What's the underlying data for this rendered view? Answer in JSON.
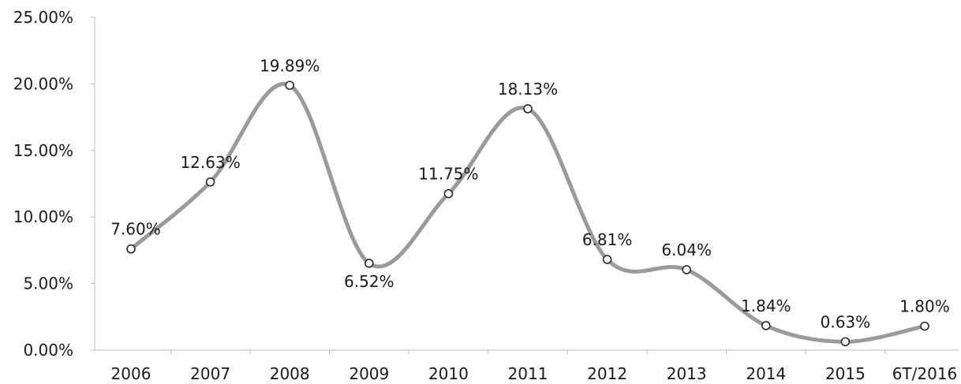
{
  "chart_data": {
    "type": "line",
    "categories": [
      "2006",
      "2007",
      "2008",
      "2009",
      "2010",
      "2011",
      "2012",
      "2013",
      "2014",
      "2015",
      "6T/2016"
    ],
    "series": [
      {
        "values": [
          7.6,
          12.63,
          19.89,
          6.52,
          11.75,
          18.13,
          6.81,
          6.04,
          1.84,
          0.63,
          1.8
        ],
        "labels": [
          "7.60%",
          "12.63%",
          "19.89%",
          "6.52%",
          "11.75%",
          "18.13%",
          "6.81%",
          "6.04%",
          "1.84%",
          "0.63%",
          "1.80%"
        ],
        "color": "#9a9a9a",
        "smooth": true
      }
    ],
    "y_ticks": [
      0,
      5,
      10,
      15,
      20,
      25
    ],
    "y_tick_labels": [
      "0.00%",
      "5.00%",
      "10.00%",
      "15.00%",
      "20.00%",
      "25.00%"
    ],
    "ylim": [
      0,
      25
    ],
    "grid": false,
    "legend": "none"
  }
}
